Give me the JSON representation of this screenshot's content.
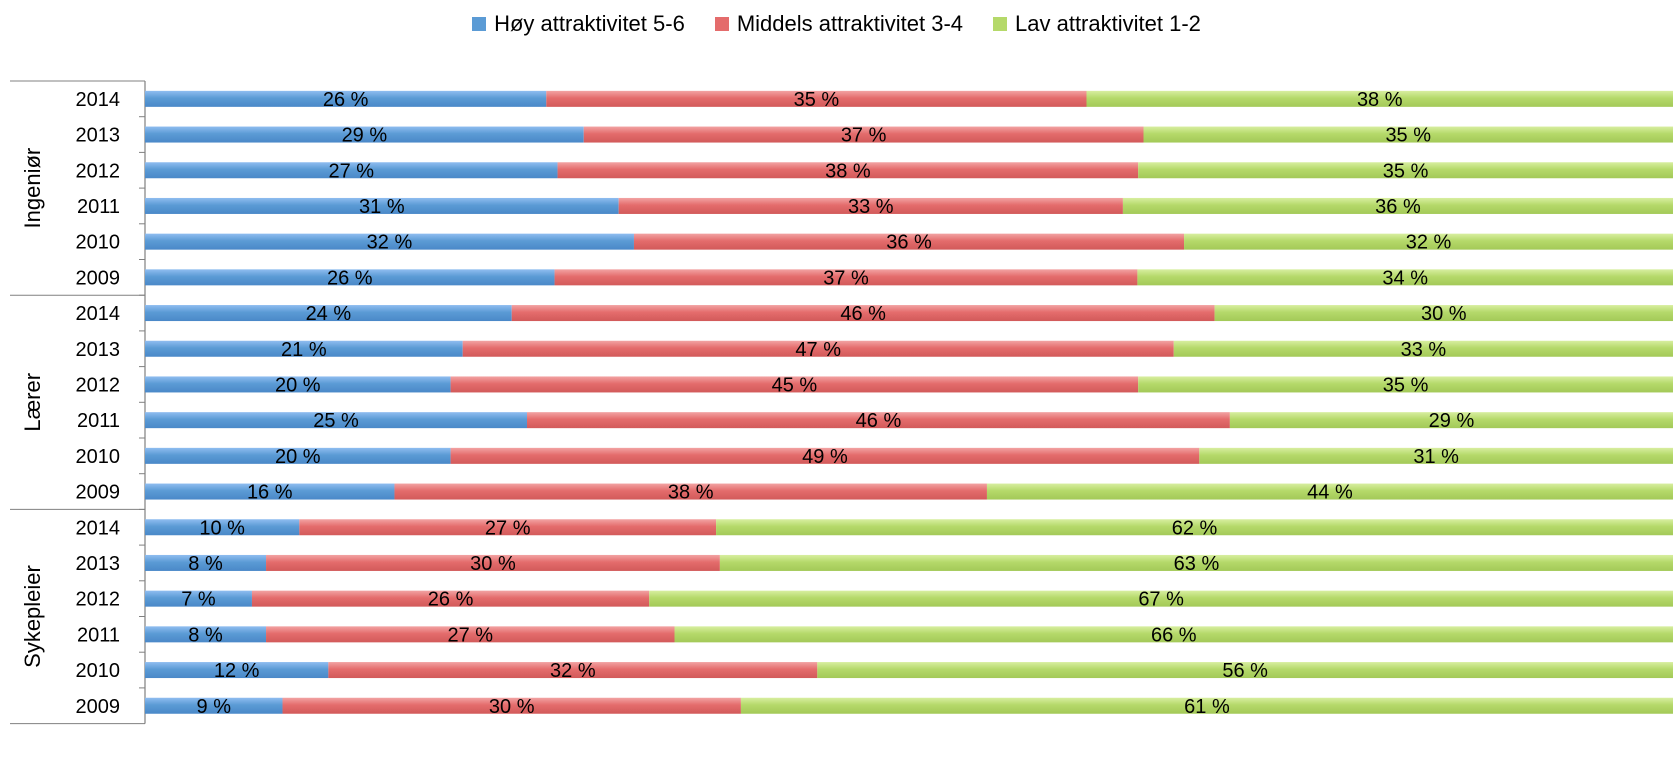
{
  "chart_data": {
    "type": "bar",
    "orientation": "horizontal",
    "stacked": "percent",
    "legend_position": "top",
    "series": [
      {
        "name": "Høy attraktivitet 5-6",
        "color": "#5b9bd5"
      },
      {
        "name": "Middels attraktivitet 3-4",
        "color": "#e46c6c"
      },
      {
        "name": "Lav attraktivitet 1-2",
        "color": "#b5d96a"
      }
    ],
    "groups": [
      {
        "name": "Ingeniør",
        "rows": [
          {
            "year": "2014",
            "values": [
              26,
              35,
              38
            ],
            "labels": [
              "26 %",
              "35 %",
              "38 %"
            ]
          },
          {
            "year": "2013",
            "values": [
              29,
              37,
              35
            ],
            "labels": [
              "29 %",
              "37 %",
              "35 %"
            ]
          },
          {
            "year": "2012",
            "values": [
              27,
              38,
              35
            ],
            "labels": [
              "27 %",
              "38 %",
              "35 %"
            ]
          },
          {
            "year": "2011",
            "values": [
              31,
              33,
              36
            ],
            "labels": [
              "31 %",
              "33 %",
              "36 %"
            ]
          },
          {
            "year": "2010",
            "values": [
              32,
              36,
              32
            ],
            "labels": [
              "32 %",
              "36 %",
              "32 %"
            ]
          },
          {
            "year": "2009",
            "values": [
              26,
              37,
              34
            ],
            "labels": [
              "26 %",
              "37 %",
              "34 %"
            ]
          }
        ]
      },
      {
        "name": "Lærer",
        "rows": [
          {
            "year": "2014",
            "values": [
              24,
              46,
              30
            ],
            "labels": [
              "24 %",
              "46 %",
              "30 %"
            ]
          },
          {
            "year": "2013",
            "values": [
              21,
              47,
              33
            ],
            "labels": [
              "21 %",
              "47 %",
              "33 %"
            ]
          },
          {
            "year": "2012",
            "values": [
              20,
              45,
              35
            ],
            "labels": [
              "20 %",
              "45 %",
              "35 %"
            ]
          },
          {
            "year": "2011",
            "values": [
              25,
              46,
              29
            ],
            "labels": [
              "25 %",
              "46 %",
              "29 %"
            ]
          },
          {
            "year": "2010",
            "values": [
              20,
              49,
              31
            ],
            "labels": [
              "20 %",
              "49 %",
              "31 %"
            ]
          },
          {
            "year": "2009",
            "values": [
              16,
              38,
              44
            ],
            "labels": [
              "16 %",
              "38 %",
              "44 %"
            ]
          }
        ]
      },
      {
        "name": "Sykepleier",
        "rows": [
          {
            "year": "2014",
            "values": [
              10,
              27,
              62
            ],
            "labels": [
              "10 %",
              "27 %",
              "62 %"
            ]
          },
          {
            "year": "2013",
            "values": [
              8,
              30,
              63
            ],
            "labels": [
              "8 %",
              "30 %",
              "63 %"
            ]
          },
          {
            "year": "2012",
            "values": [
              7,
              26,
              67
            ],
            "labels": [
              "7 %",
              "26 %",
              "67 %"
            ]
          },
          {
            "year": "2011",
            "values": [
              8,
              27,
              66
            ],
            "labels": [
              "8 %",
              "27 %",
              "66 %"
            ]
          },
          {
            "year": "2010",
            "values": [
              12,
              32,
              56
            ],
            "labels": [
              "12 %",
              "32 %",
              "56 %"
            ]
          },
          {
            "year": "2009",
            "values": [
              9,
              30,
              61
            ],
            "labels": [
              "9 %",
              "30 %",
              "61 %"
            ]
          }
        ]
      }
    ]
  }
}
